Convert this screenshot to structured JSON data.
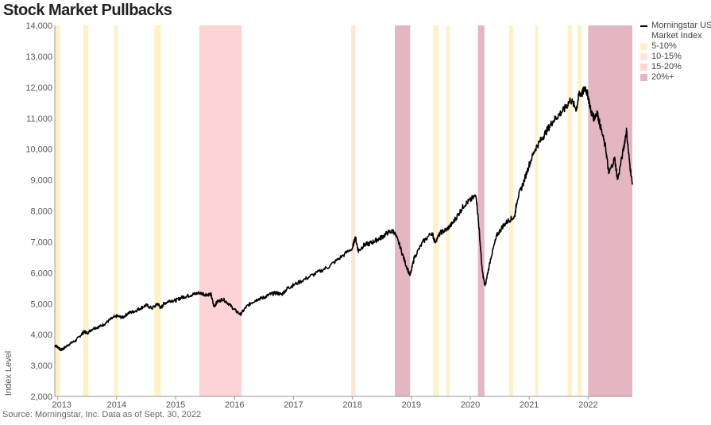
{
  "title": "Stock Market Pullbacks",
  "source": "Source: Morningstar, Inc. Data as of Sept. 30, 2022",
  "chart_data": {
    "type": "line",
    "title": "Stock Market Pullbacks",
    "ylabel": "Index Level",
    "xlabel": "",
    "ylim": [
      2000,
      14000
    ],
    "xlim": [
      2012.95,
      2022.75
    ],
    "y_ticks": [
      2000,
      3000,
      4000,
      5000,
      6000,
      7000,
      8000,
      9000,
      10000,
      11000,
      12000,
      13000,
      14000
    ],
    "y_tick_labels": [
      "2,000",
      "3,000",
      "4,000",
      "5,000",
      "6,000",
      "7,000",
      "8,000",
      "9,000",
      "10,000",
      "11,000",
      "12,000",
      "13,000",
      "14,000"
    ],
    "x_ticks": [
      2013,
      2014,
      2015,
      2016,
      2017,
      2018,
      2019,
      2020,
      2021,
      2022
    ],
    "x_tick_labels": [
      "2013",
      "2014",
      "2015",
      "2016",
      "2017",
      "2018",
      "2019",
      "2020",
      "2021",
      "2022"
    ],
    "grid": false,
    "legend_position": "right",
    "series": [
      {
        "name": "Morningstar US Market Index",
        "color": "#000000",
        "x": [
          2012.95,
          2013.0,
          2013.05,
          2013.1,
          2013.2,
          2013.3,
          2013.4,
          2013.45,
          2013.5,
          2013.6,
          2013.7,
          2013.8,
          2013.9,
          2014.0,
          2014.1,
          2014.2,
          2014.3,
          2014.4,
          2014.5,
          2014.6,
          2014.7,
          2014.75,
          2014.8,
          2014.9,
          2015.0,
          2015.1,
          2015.2,
          2015.3,
          2015.4,
          2015.5,
          2015.6,
          2015.65,
          2015.7,
          2015.8,
          2015.9,
          2016.0,
          2016.1,
          2016.2,
          2016.3,
          2016.4,
          2016.5,
          2016.6,
          2016.7,
          2016.8,
          2016.9,
          2017.0,
          2017.2,
          2017.4,
          2017.6,
          2017.8,
          2018.0,
          2018.05,
          2018.1,
          2018.2,
          2018.3,
          2018.4,
          2018.5,
          2018.6,
          2018.7,
          2018.8,
          2018.9,
          2018.98,
          2019.05,
          2019.2,
          2019.35,
          2019.4,
          2019.5,
          2019.6,
          2019.7,
          2019.8,
          2019.9,
          2020.0,
          2020.1,
          2020.15,
          2020.2,
          2020.25,
          2020.35,
          2020.45,
          2020.55,
          2020.65,
          2020.75,
          2020.8,
          2020.9,
          2021.0,
          2021.1,
          2021.2,
          2021.3,
          2021.4,
          2021.5,
          2021.6,
          2021.7,
          2021.8,
          2021.85,
          2021.9,
          2021.95,
          2022.0,
          2022.05,
          2022.1,
          2022.15,
          2022.2,
          2022.3,
          2022.35,
          2022.45,
          2022.5,
          2022.6,
          2022.65,
          2022.7,
          2022.75
        ],
        "y": [
          3650,
          3600,
          3500,
          3550,
          3700,
          3800,
          4000,
          4100,
          4050,
          4200,
          4250,
          4350,
          4500,
          4600,
          4550,
          4700,
          4750,
          4850,
          4950,
          4850,
          5000,
          4850,
          5000,
          5100,
          5100,
          5200,
          5250,
          5300,
          5350,
          5300,
          5300,
          4900,
          5050,
          5150,
          5000,
          4800,
          4650,
          4900,
          5050,
          5150,
          5200,
          5300,
          5350,
          5300,
          5500,
          5600,
          5800,
          6000,
          6200,
          6500,
          6800,
          7150,
          6700,
          6900,
          6950,
          7050,
          7150,
          7300,
          7350,
          6900,
          6300,
          5900,
          6500,
          7000,
          7300,
          7000,
          7300,
          7400,
          7600,
          7900,
          8200,
          8350,
          8500,
          7400,
          6100,
          5550,
          6500,
          7200,
          7500,
          7700,
          7800,
          8400,
          8900,
          9500,
          10000,
          10300,
          10600,
          10900,
          11100,
          11300,
          11600,
          11300,
          11800,
          11800,
          12000,
          11700,
          11200,
          11000,
          11200,
          10800,
          10000,
          9200,
          9700,
          9000,
          10000,
          10600,
          9600,
          8850
        ]
      }
    ],
    "shaded_periods": [
      {
        "category": "5-10%",
        "color": "#fdf1c6",
        "start": 2012.95,
        "end": 2013.04
      },
      {
        "category": "5-10%",
        "color": "#fdf1c6",
        "start": 2013.43,
        "end": 2013.52
      },
      {
        "category": "5-10%",
        "color": "#fdf1c6",
        "start": 2013.96,
        "end": 2014.02
      },
      {
        "category": "5-10%",
        "color": "#fdf1c6",
        "start": 2014.64,
        "end": 2014.75
      },
      {
        "category": "15-20%",
        "color": "#fcd4d6",
        "start": 2015.4,
        "end": 2016.12
      },
      {
        "category": "10-15%",
        "color": "#fbe6d8",
        "start": 2017.98,
        "end": 2018.05
      },
      {
        "category": "20%+",
        "color": "#e4b6c1",
        "start": 2018.72,
        "end": 2018.98
      },
      {
        "category": "5-10%",
        "color": "#fdf1c6",
        "start": 2019.37,
        "end": 2019.46
      },
      {
        "category": "5-10%",
        "color": "#fdf1c6",
        "start": 2019.59,
        "end": 2019.65
      },
      {
        "category": "20%+",
        "color": "#e4b6c1",
        "start": 2020.13,
        "end": 2020.24
      },
      {
        "category": "5-10%",
        "color": "#fdf1c6",
        "start": 2020.66,
        "end": 2020.73
      },
      {
        "category": "5-10%",
        "color": "#fdf1c6",
        "start": 2021.1,
        "end": 2021.15
      },
      {
        "category": "5-10%",
        "color": "#fdf1c6",
        "start": 2021.65,
        "end": 2021.72
      },
      {
        "category": "5-10%",
        "color": "#fdf1c6",
        "start": 2021.82,
        "end": 2021.89
      },
      {
        "category": "20%+",
        "color": "#e4b6c1",
        "start": 2022.0,
        "end": 2022.75
      }
    ]
  },
  "legend": [
    {
      "label": "Morningstar US Market Index",
      "kind": "line",
      "color": "#000000"
    },
    {
      "label": "5-10%",
      "kind": "swatch",
      "color": "#fdf1c6"
    },
    {
      "label": "10-15%",
      "kind": "swatch",
      "color": "#fbe6d8"
    },
    {
      "label": "15-20%",
      "kind": "swatch",
      "color": "#fcd4d6"
    },
    {
      "label": "20%+",
      "kind": "swatch",
      "color": "#e4b6c1"
    }
  ]
}
